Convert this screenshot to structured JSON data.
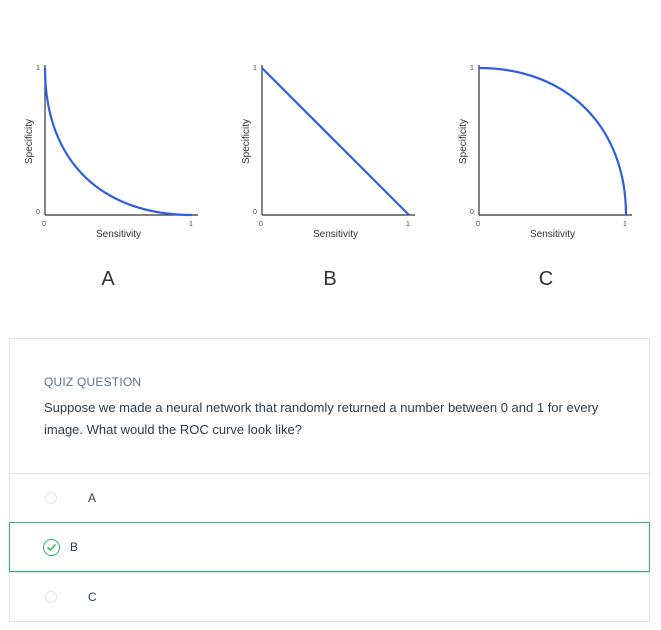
{
  "charts": [
    {
      "letter": "A",
      "xlabel": "Sensitivity",
      "ylabel": "Specificity",
      "ticks": {
        "x0": "0",
        "x1": "1",
        "y0": "0",
        "y1": "1"
      },
      "curve": "convex"
    },
    {
      "letter": "B",
      "xlabel": "Sensitivity",
      "ylabel": "Specificity",
      "ticks": {
        "x0": "0",
        "x1": "1",
        "y0": "0",
        "y1": "1"
      },
      "curve": "diagonal"
    },
    {
      "letter": "C",
      "xlabel": "Sensitivity",
      "ylabel": "Specificity",
      "ticks": {
        "x0": "0",
        "x1": "1",
        "y0": "0",
        "y1": "1"
      },
      "curve": "concave"
    }
  ],
  "chart_data": [
    {
      "type": "line",
      "xlabel": "Sensitivity",
      "ylabel": "Specificity",
      "xlim": [
        0,
        1
      ],
      "ylim": [
        0,
        1
      ],
      "series": [
        {
          "x": [
            0,
            0.05,
            0.15,
            0.3,
            0.5,
            0.7,
            0.85,
            1
          ],
          "y": [
            1,
            0.72,
            0.5,
            0.3,
            0.15,
            0.06,
            0.02,
            0
          ]
        }
      ]
    },
    {
      "type": "line",
      "xlabel": "Sensitivity",
      "ylabel": "Specificity",
      "xlim": [
        0,
        1
      ],
      "ylim": [
        0,
        1
      ],
      "series": [
        {
          "x": [
            0,
            1
          ],
          "y": [
            1,
            0
          ]
        }
      ]
    },
    {
      "type": "line",
      "xlabel": "Sensitivity",
      "ylabel": "Specificity",
      "xlim": [
        0,
        1
      ],
      "ylim": [
        0,
        1
      ],
      "series": [
        {
          "x": [
            0,
            0.15,
            0.3,
            0.5,
            0.7,
            0.85,
            0.95,
            1
          ],
          "y": [
            1,
            0.98,
            0.94,
            0.85,
            0.7,
            0.5,
            0.28,
            0
          ]
        }
      ]
    }
  ],
  "quiz": {
    "label": "QUIZ QUESTION",
    "question": "Suppose we made a neural network that randomly returned a number between 0 and 1 for every image. What would the ROC curve look like?",
    "options": [
      {
        "label": "A",
        "selected": false
      },
      {
        "label": "B",
        "selected": true
      },
      {
        "label": "C",
        "selected": false
      }
    ]
  },
  "colors": {
    "curve": "#2f5fe0",
    "accent": "#2cb56a"
  }
}
